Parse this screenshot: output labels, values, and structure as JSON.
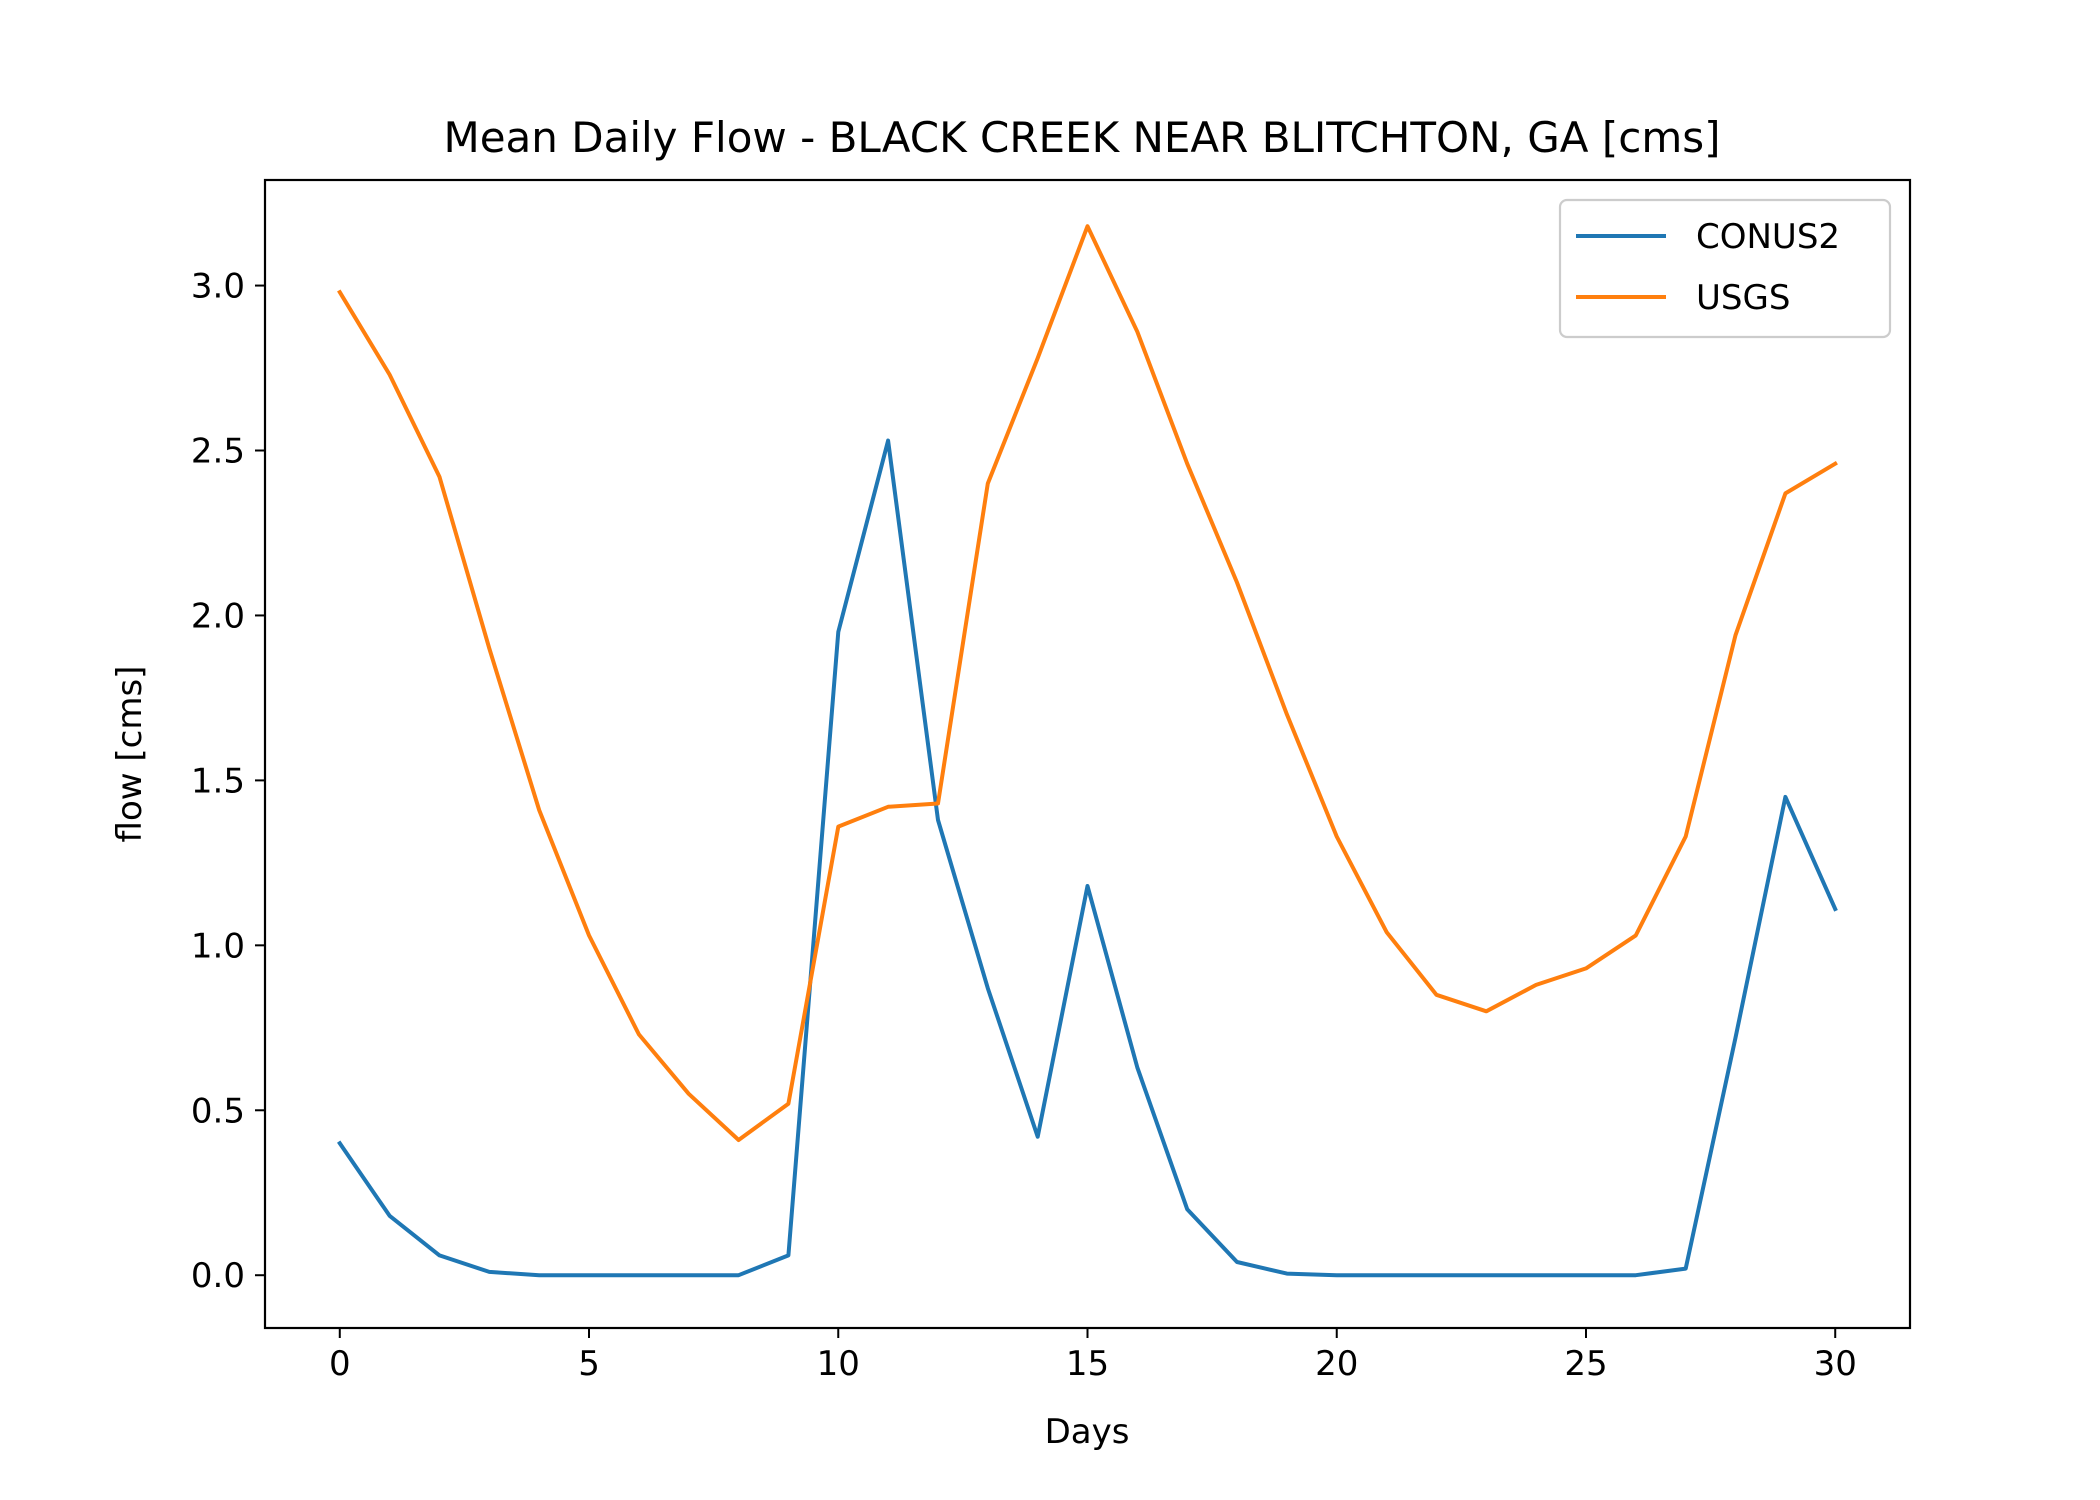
{
  "chart_data": {
    "type": "line",
    "title": "Mean Daily Flow - BLACK CREEK NEAR BLITCHTON, GA [cms]",
    "xlabel": "Days",
    "ylabel": "flow [cms]",
    "xlim": [
      -1.5,
      31.5
    ],
    "ylim": [
      -0.16,
      3.32
    ],
    "xticks": [
      0,
      5,
      10,
      15,
      20,
      25,
      30
    ],
    "xtick_labels": [
      "0",
      "5",
      "10",
      "15",
      "20",
      "25",
      "30"
    ],
    "yticks": [
      0.0,
      0.5,
      1.0,
      1.5,
      2.0,
      2.5,
      3.0
    ],
    "ytick_labels": [
      "0.0",
      "0.5",
      "1.0",
      "1.5",
      "2.0",
      "2.5",
      "3.0"
    ],
    "grid": false,
    "legend_position": "top-right",
    "x": [
      0,
      1,
      2,
      3,
      4,
      5,
      6,
      7,
      8,
      9,
      10,
      11,
      12,
      13,
      14,
      15,
      16,
      17,
      18,
      19,
      20,
      21,
      22,
      23,
      24,
      25,
      26,
      27,
      28,
      29,
      30
    ],
    "series": [
      {
        "name": "CONUS2",
        "color": "#1f77b4",
        "values": [
          0.4,
          0.18,
          0.06,
          0.01,
          0.0,
          0.0,
          0.0,
          0.0,
          0.0,
          0.06,
          1.95,
          2.53,
          1.38,
          0.87,
          0.42,
          1.18,
          0.63,
          0.2,
          0.04,
          0.005,
          0.0,
          0.0,
          0.0,
          0.0,
          0.0,
          0.0,
          0.0,
          0.02,
          0.72,
          1.45,
          1.11
        ]
      },
      {
        "name": "USGS",
        "color": "#ff7f0e",
        "values": [
          2.98,
          2.73,
          2.42,
          1.9,
          1.41,
          1.03,
          0.73,
          0.55,
          0.41,
          0.52,
          1.36,
          1.42,
          1.43,
          2.4,
          2.78,
          3.18,
          2.86,
          2.46,
          2.1,
          1.7,
          1.33,
          1.04,
          0.85,
          0.8,
          0.88,
          0.93,
          1.03,
          1.33,
          1.94,
          2.37,
          2.46
        ]
      }
    ]
  }
}
